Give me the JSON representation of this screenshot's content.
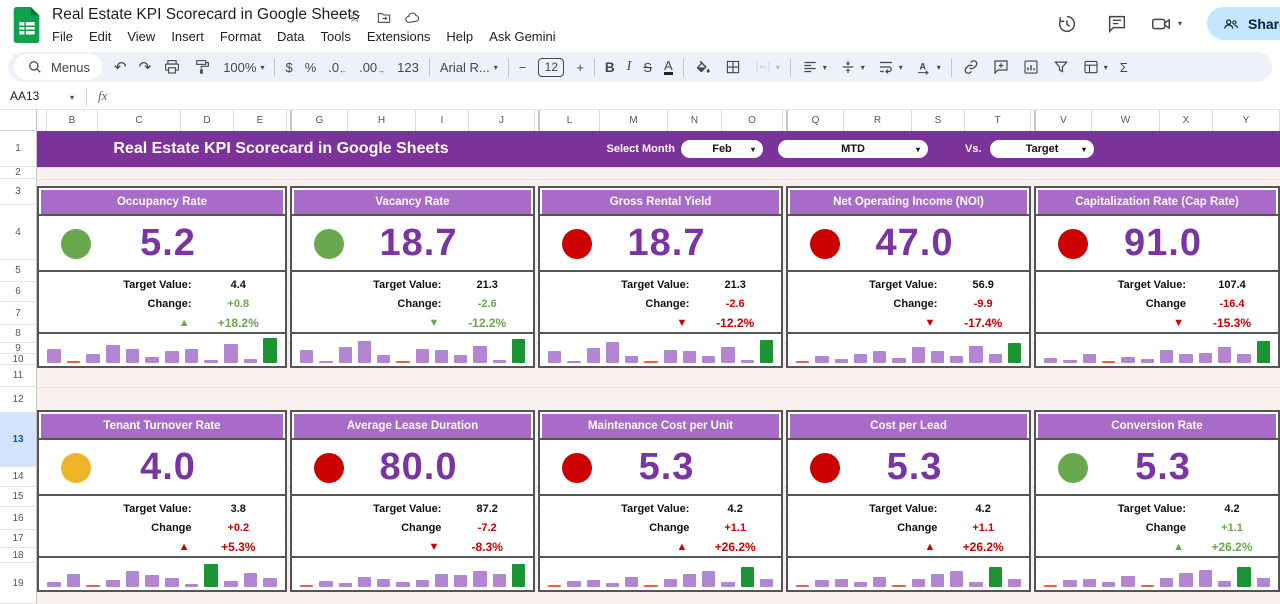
{
  "titlebar": {
    "doc_title": "Real Estate KPI Scorecard in Google Sheets",
    "title_icons": [
      "star",
      "folder-move",
      "cloud-check"
    ],
    "menus": [
      "File",
      "Edit",
      "View",
      "Insert",
      "Format",
      "Data",
      "Tools",
      "Extensions",
      "Help",
      "Ask Gemini"
    ],
    "right_icons": [
      "history",
      "comment",
      "videocam"
    ],
    "share_label": "Share"
  },
  "toolbar": {
    "items": [
      {
        "name": "menus-search",
        "icon": "search",
        "label": "Menus"
      },
      {
        "name": "undo",
        "glyph": "↶"
      },
      {
        "name": "redo",
        "glyph": "↷"
      },
      {
        "name": "print",
        "icon": "print"
      },
      {
        "name": "paint-format",
        "icon": "paint"
      },
      {
        "name": "zoom",
        "label": "100%",
        "caret": true
      },
      {
        "sep": true
      },
      {
        "name": "currency-format",
        "label": "$"
      },
      {
        "name": "percent-format",
        "label": "%"
      },
      {
        "name": "decrease-decimals",
        "label": ".0",
        "sub": "←"
      },
      {
        "name": "increase-decimals",
        "label": ".00",
        "sub": "→"
      },
      {
        "name": "more-formats",
        "label": "123"
      },
      {
        "sep": true
      },
      {
        "name": "font",
        "label": "Arial R...",
        "caret": true
      },
      {
        "sep": true
      },
      {
        "name": "font-size-decrease",
        "label": "−"
      },
      {
        "name": "font-size",
        "label": "12",
        "box": true
      },
      {
        "name": "font-size-increase",
        "label": "+"
      },
      {
        "sep": true
      },
      {
        "name": "bold",
        "label": "B"
      },
      {
        "name": "italic",
        "label": "I"
      },
      {
        "name": "strikethrough",
        "label": "S"
      },
      {
        "name": "text-color",
        "label": "A"
      },
      {
        "sep": true
      },
      {
        "name": "fill-color",
        "icon": "fill"
      },
      {
        "name": "borders",
        "icon": "borders"
      },
      {
        "name": "merge-cells",
        "icon": "merge",
        "caret": true,
        "disabled": true
      },
      {
        "sep": true
      },
      {
        "name": "horizontal-align",
        "icon": "halign",
        "caret": true
      },
      {
        "name": "vertical-align",
        "icon": "valign",
        "caret": true
      },
      {
        "name": "text-wrapping",
        "icon": "wrap",
        "caret": true
      },
      {
        "name": "text-rotation",
        "icon": "rotate",
        "caret": true
      },
      {
        "sep": true
      },
      {
        "name": "insert-link",
        "icon": "link"
      },
      {
        "name": "insert-comment",
        "icon": "commentadd"
      },
      {
        "name": "insert-chart",
        "icon": "chart"
      },
      {
        "name": "create-filter",
        "icon": "filter"
      },
      {
        "name": "table-views",
        "icon": "views",
        "caret": true
      },
      {
        "name": "functions",
        "label": "Σ"
      }
    ]
  },
  "formula_bar": {
    "name_box": "AA13",
    "fx_label": "fx"
  },
  "grid": {
    "columns": [
      "B",
      "C",
      "D",
      "E",
      "G",
      "H",
      "I",
      "J",
      "L",
      "M",
      "N",
      "O",
      "Q",
      "R",
      "S",
      "T",
      "V",
      "W",
      "X",
      "Y"
    ],
    "rows": [
      "1",
      "2",
      "3",
      "4",
      "5",
      "6",
      "7",
      "8",
      "9",
      "10",
      "11",
      "12",
      "13",
      "14",
      "15",
      "16",
      "17",
      "18",
      "19"
    ],
    "selected_row": "13"
  },
  "banner": {
    "title": "Real Estate KPI Scorecard in Google Sheets",
    "select_month_label": "Select Month",
    "month": "Feb",
    "period": "MTD",
    "vs_label": "Vs.",
    "compare": "Target"
  },
  "colors": {
    "banner": "#7c3399",
    "card_header": "#a96bc8",
    "value_purple": "#7a35a2",
    "green": "#6aa84f",
    "red": "#cc0000",
    "yellow": "#f0b429",
    "bar_purple": "#b286d2",
    "bar_green": "#1c9434",
    "bar_red": "#e0614c",
    "share_bg": "#c2e7ff"
  },
  "cards": [
    {
      "title": "Occupancy Rate",
      "status": "green",
      "value": "5.2",
      "target_label": "Target Value:",
      "target": "4.4",
      "change_label": "Change:",
      "change": "+0.8",
      "pct": "+18.2%",
      "direction": "up",
      "trend": "good",
      "bars": [
        [
          55,
          "p"
        ],
        [
          4,
          "r"
        ],
        [
          33,
          "p"
        ],
        [
          68,
          "p"
        ],
        [
          53,
          "p"
        ],
        [
          24,
          "p"
        ],
        [
          45,
          "p"
        ],
        [
          53,
          "p"
        ],
        [
          12,
          "p"
        ],
        [
          73,
          "p"
        ],
        [
          16,
          "p"
        ],
        [
          95,
          "g"
        ]
      ]
    },
    {
      "title": "Vacancy Rate",
      "status": "green",
      "value": "18.7",
      "target_label": "Target Value:",
      "target": "21.3",
      "change_label": "Change:",
      "change": "-2.6",
      "pct": "-12.2%",
      "direction": "down",
      "trend": "good",
      "bars": [
        [
          50,
          "p"
        ],
        [
          8,
          "p"
        ],
        [
          62,
          "p"
        ],
        [
          85,
          "p"
        ],
        [
          30,
          "p"
        ],
        [
          4,
          "r"
        ],
        [
          55,
          "p"
        ],
        [
          50,
          "p"
        ],
        [
          30,
          "p"
        ],
        [
          65,
          "p"
        ],
        [
          10,
          "p"
        ],
        [
          92,
          "g"
        ]
      ]
    },
    {
      "title": "Gross Rental Yield",
      "status": "red",
      "value": "18.7",
      "target_label": "Target Value:",
      "target": "21.3",
      "change_label": "Change:",
      "change": "-2.6",
      "pct": "-12.2%",
      "direction": "down",
      "trend": "bad",
      "bars": [
        [
          45,
          "p"
        ],
        [
          8,
          "p"
        ],
        [
          58,
          "p"
        ],
        [
          80,
          "p"
        ],
        [
          28,
          "p"
        ],
        [
          4,
          "r"
        ],
        [
          50,
          "p"
        ],
        [
          45,
          "p"
        ],
        [
          28,
          "p"
        ],
        [
          62,
          "p"
        ],
        [
          10,
          "p"
        ],
        [
          90,
          "g"
        ]
      ]
    },
    {
      "title": "Net Operating Income (NOI)",
      "status": "red",
      "value": "47.0",
      "target_label": "Target Value:",
      "target": "56.9",
      "change_label": "Change:",
      "change": "-9.9",
      "pct": "-17.4%",
      "direction": "down",
      "trend": "bad",
      "bars": [
        [
          4,
          "r"
        ],
        [
          25,
          "p"
        ],
        [
          15,
          "p"
        ],
        [
          35,
          "p"
        ],
        [
          45,
          "p"
        ],
        [
          20,
          "p"
        ],
        [
          60,
          "p"
        ],
        [
          45,
          "p"
        ],
        [
          25,
          "p"
        ],
        [
          65,
          "p"
        ],
        [
          35,
          "p"
        ],
        [
          78,
          "g"
        ]
      ]
    },
    {
      "title": "Capitalization Rate (Cap Rate)",
      "status": "red",
      "value": "91.0",
      "target_label": "Target Value:",
      "target": "107.4",
      "change_label": "Change",
      "change": "-16.4",
      "pct": "-15.3%",
      "direction": "down",
      "trend": "bad",
      "bars": [
        [
          20,
          "p"
        ],
        [
          12,
          "p"
        ],
        [
          35,
          "p"
        ],
        [
          4,
          "r"
        ],
        [
          22,
          "p"
        ],
        [
          15,
          "p"
        ],
        [
          50,
          "p"
        ],
        [
          35,
          "p"
        ],
        [
          40,
          "p"
        ],
        [
          60,
          "p"
        ],
        [
          35,
          "p"
        ],
        [
          85,
          "g"
        ]
      ]
    },
    {
      "title": "Tenant Turnover Rate",
      "status": "yellow",
      "value": "4.0",
      "target_label": "Target Value:",
      "target": "3.8",
      "change_label": "Change",
      "change": "+0.2",
      "pct": "+5.3%",
      "direction": "up",
      "trend": "bad",
      "bars": [
        [
          20,
          "p"
        ],
        [
          50,
          "p"
        ],
        [
          4,
          "r"
        ],
        [
          28,
          "p"
        ],
        [
          60,
          "p"
        ],
        [
          45,
          "p"
        ],
        [
          35,
          "p"
        ],
        [
          10,
          "p"
        ],
        [
          88,
          "g"
        ],
        [
          22,
          "p"
        ],
        [
          55,
          "p"
        ],
        [
          35,
          "p"
        ]
      ]
    },
    {
      "title": "Average Lease Duration",
      "status": "red",
      "value": "80.0",
      "target_label": "Target Value:",
      "target": "87.2",
      "change_label": "Change",
      "change": "-7.2",
      "pct": "-8.3%",
      "direction": "down",
      "trend": "bad",
      "bars": [
        [
          4,
          "r"
        ],
        [
          22,
          "p"
        ],
        [
          15,
          "p"
        ],
        [
          40,
          "p"
        ],
        [
          32,
          "p"
        ],
        [
          18,
          "p"
        ],
        [
          25,
          "p"
        ],
        [
          50,
          "p"
        ],
        [
          45,
          "p"
        ],
        [
          60,
          "p"
        ],
        [
          50,
          "p"
        ],
        [
          90,
          "g"
        ]
      ]
    },
    {
      "title": "Maintenance Cost per Unit",
      "status": "red",
      "value": "5.3",
      "target_label": "Target Value:",
      "target": "4.2",
      "change_label": "Change",
      "change": "+1.1",
      "pct": "+26.2%",
      "direction": "up",
      "trend": "bad",
      "bars": [
        [
          4,
          "r"
        ],
        [
          22,
          "p"
        ],
        [
          28,
          "p"
        ],
        [
          15,
          "p"
        ],
        [
          40,
          "p"
        ],
        [
          4,
          "r"
        ],
        [
          30,
          "p"
        ],
        [
          50,
          "p"
        ],
        [
          60,
          "p"
        ],
        [
          20,
          "p"
        ],
        [
          78,
          "g"
        ],
        [
          30,
          "p"
        ]
      ]
    },
    {
      "title": "Cost per Lead",
      "status": "red",
      "value": "5.3",
      "target_label": "Target Value:",
      "target": "4.2",
      "change_label": "Change",
      "change": "+1.1",
      "pct": "+26.2%",
      "direction": "up",
      "trend": "bad",
      "bars": [
        [
          4,
          "r"
        ],
        [
          25,
          "p"
        ],
        [
          30,
          "p"
        ],
        [
          18,
          "p"
        ],
        [
          38,
          "p"
        ],
        [
          4,
          "r"
        ],
        [
          32,
          "p"
        ],
        [
          50,
          "p"
        ],
        [
          60,
          "p"
        ],
        [
          20,
          "p"
        ],
        [
          78,
          "g"
        ],
        [
          32,
          "p"
        ]
      ]
    },
    {
      "title": "Conversion Rate",
      "status": "green",
      "value": "5.3",
      "target_label": "Target Value:",
      "target": "4.2",
      "change_label": "Change",
      "change": "+1.1",
      "pct": "+26.2%",
      "direction": "up",
      "trend": "good",
      "bars": [
        [
          4,
          "r"
        ],
        [
          25,
          "p"
        ],
        [
          32,
          "p"
        ],
        [
          18,
          "p"
        ],
        [
          42,
          "p"
        ],
        [
          4,
          "r"
        ],
        [
          35,
          "p"
        ],
        [
          55,
          "p"
        ],
        [
          65,
          "p"
        ],
        [
          22,
          "p"
        ],
        [
          78,
          "g"
        ],
        [
          35,
          "p"
        ]
      ]
    }
  ]
}
